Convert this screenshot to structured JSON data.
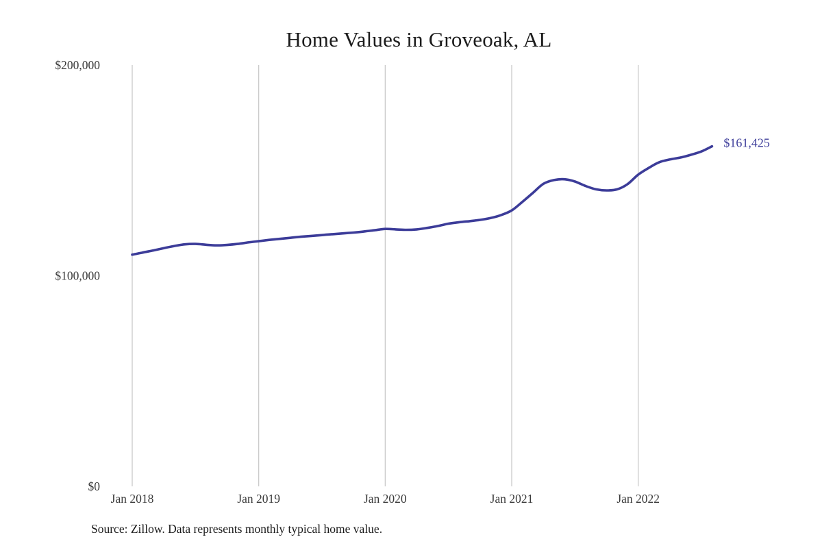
{
  "chart_data": {
    "type": "line",
    "title": "Home Values in Groveoak, AL",
    "source_note": "Source: Zillow. Data represents monthly typical home value.",
    "series_name": "Monthly typical home value",
    "unit": "USD",
    "x": [
      "2018-01",
      "2018-02",
      "2018-03",
      "2018-04",
      "2018-05",
      "2018-06",
      "2018-07",
      "2018-08",
      "2018-09",
      "2018-10",
      "2018-11",
      "2018-12",
      "2019-01",
      "2019-02",
      "2019-03",
      "2019-04",
      "2019-05",
      "2019-06",
      "2019-07",
      "2019-08",
      "2019-09",
      "2019-10",
      "2019-11",
      "2019-12",
      "2020-01",
      "2020-02",
      "2020-03",
      "2020-04",
      "2020-05",
      "2020-06",
      "2020-07",
      "2020-08",
      "2020-09",
      "2020-10",
      "2020-11",
      "2020-12",
      "2021-01",
      "2021-02",
      "2021-03",
      "2021-04",
      "2021-05",
      "2021-06",
      "2021-07",
      "2021-08",
      "2021-09",
      "2021-10",
      "2021-11",
      "2021-12",
      "2022-01",
      "2022-02",
      "2022-03",
      "2022-04",
      "2022-05",
      "2022-06",
      "2022-07",
      "2022-08"
    ],
    "values": [
      110000,
      111000,
      112000,
      113100,
      114100,
      114900,
      115100,
      114700,
      114400,
      114600,
      115100,
      115800,
      116400,
      117000,
      117500,
      118000,
      118500,
      118900,
      119300,
      119700,
      120100,
      120500,
      121000,
      121600,
      122200,
      122000,
      121800,
      122000,
      122700,
      123600,
      124700,
      125400,
      125900,
      126500,
      127400,
      128800,
      131000,
      135000,
      139300,
      143600,
      145400,
      145800,
      144700,
      142600,
      141000,
      140500,
      141000,
      143500,
      148000,
      151200,
      153900,
      155200,
      156100,
      157400,
      159000,
      161425
    ],
    "end_label": "$161,425",
    "ylim": [
      0,
      200000
    ],
    "y_ticks": [
      {
        "value": 0,
        "label": "$0"
      },
      {
        "value": 100000,
        "label": "$100,000"
      },
      {
        "value": 200000,
        "label": "$200,000"
      }
    ],
    "x_ticks": [
      {
        "index": 0,
        "label": "Jan 2018"
      },
      {
        "index": 12,
        "label": "Jan 2019"
      },
      {
        "index": 24,
        "label": "Jan 2020"
      },
      {
        "index": 36,
        "label": "Jan 2021"
      },
      {
        "index": 48,
        "label": "Jan 2022"
      }
    ],
    "grid": "vertical",
    "legend": "none",
    "colors": {
      "line": "#3c3c99",
      "end_label": "#3d3d9a",
      "gridline": "#c9c9c9",
      "title": "#1c1c1c",
      "tick_text": "#3a3a3a",
      "source_text": "#1a1a1a",
      "background": "#ffffff"
    }
  }
}
